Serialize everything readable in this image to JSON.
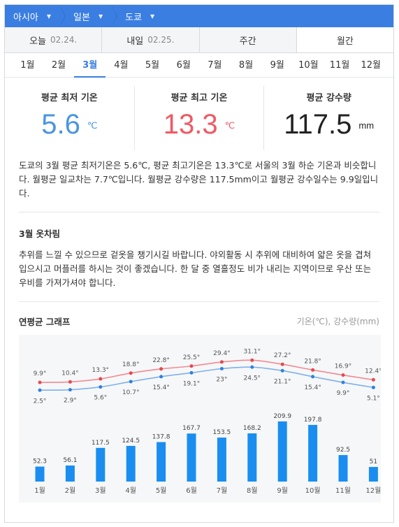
{
  "breadcrumb": [
    {
      "label": "아시아"
    },
    {
      "label": "일본"
    },
    {
      "label": "도쿄"
    }
  ],
  "tabs": [
    {
      "label": "오늘",
      "date": "02.24."
    },
    {
      "label": "내일",
      "date": "02.25."
    },
    {
      "label": "주간",
      "date": ""
    },
    {
      "label": "월간",
      "date": ""
    }
  ],
  "months": [
    "1월",
    "2월",
    "3월",
    "4월",
    "5월",
    "6월",
    "7월",
    "8월",
    "9월",
    "10월",
    "11월",
    "12월"
  ],
  "active_month": "3월",
  "stats": {
    "min": {
      "label": "평균 최저 기온",
      "value": "5.6",
      "unit": "℃"
    },
    "max": {
      "label": "평균 최고 기온",
      "value": "13.3",
      "unit": "℃"
    },
    "rain": {
      "label": "평균 강수량",
      "value": "117.5",
      "unit": "mm"
    }
  },
  "description": "도쿄의 3월 평균 최저기온은 5.6℃, 평균 최고기온은 13.3℃로 서울의 3월 하순 기온과 비슷합니다. 월평균 일교차는 7.7℃입니다. 월평균 강수량은 117.5mm이고 월평균 강수일수는 9.9일입니다.",
  "clothing": {
    "title": "3월 옷차림",
    "text": "추위를 느낄 수 있으므로 겉옷을 챙기시길 바랍니다. 야외활동 시 추위에 대비하여 얇은 옷을 겹쳐 입으시고 머플러를 하시는 것이 좋겠습니다. 한 달 중 열흘정도 비가 내리는 지역이므로 우산 또는 우비를 가져가셔야 합니다."
  },
  "graph": {
    "title": "연평균 그래프",
    "units": "기온(℃), 강수량(mm)"
  },
  "chart_data": {
    "type": "line+bar",
    "categories": [
      "1월",
      "2월",
      "3월",
      "4월",
      "5월",
      "6월",
      "7월",
      "8월",
      "9월",
      "10월",
      "11월",
      "12월"
    ],
    "series": [
      {
        "values": [
          9.9,
          10.4,
          13.3,
          18.8,
          22.8,
          25.5,
          29.4,
          31.1,
          27.2,
          21.8,
          16.9,
          12.4
        ],
        "color": "#f08a93"
      },
      {
        "values": [
          2.5,
          2.9,
          5.6,
          10.7,
          15.4,
          19.1,
          23,
          24.5,
          21.1,
          15.4,
          9.9,
          5.1
        ],
        "color": "#7fb0ea"
      },
      {
        "values": [
          52.3,
          56.1,
          117.5,
          124.5,
          137.8,
          167.7,
          153.5,
          168.2,
          209.9,
          197.8,
          92.5,
          51
        ],
        "color": "#1a8ef0"
      }
    ],
    "temp_labels_max": [
      "9.9°",
      "10.4°",
      "13.3°",
      "18.8°",
      "22.8°",
      "25.5°",
      "29.4°",
      "31.1°",
      "27.2°",
      "21.8°",
      "16.9°",
      "12.4°"
    ],
    "temp_labels_min": [
      "2.5°",
      "2.9°",
      "5.6°",
      "10.7°",
      "15.4°",
      "19.1°",
      "23°",
      "24.5°",
      "21.1°",
      "15.4°",
      "9.9°",
      "5.1°"
    ],
    "rain_labels": [
      "52.3",
      "56.1",
      "117.5",
      "124.5",
      "137.8",
      "167.7",
      "153.5",
      "168.2",
      "209.9",
      "197.8",
      "92.5",
      "51"
    ]
  }
}
